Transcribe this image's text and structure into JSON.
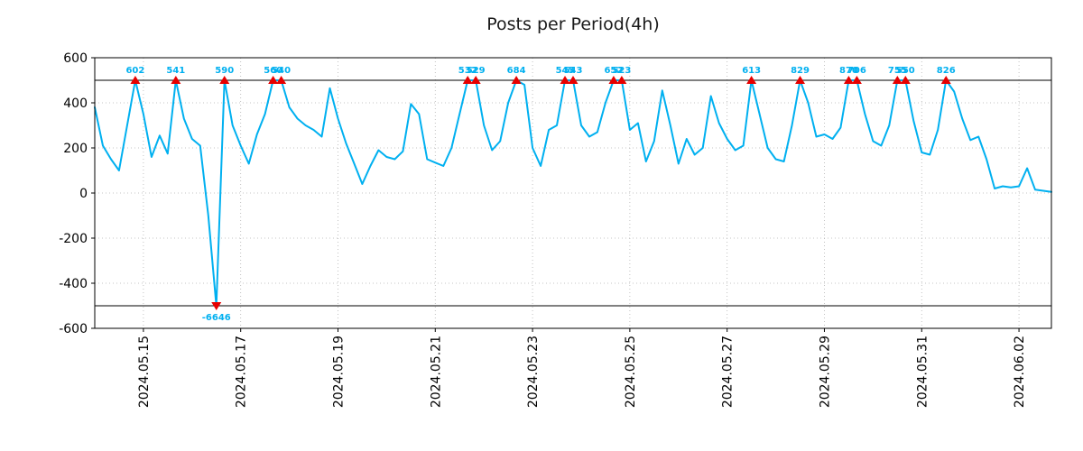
{
  "chart_data": {
    "type": "line",
    "title": "Posts per Period(4h)",
    "xlabel": "",
    "ylabel": "",
    "ylim": [
      -600,
      600
    ],
    "yticks": [
      600,
      400,
      200,
      0,
      -200,
      -400,
      -600
    ],
    "xticks": [
      {
        "label": "2024.05.15",
        "day": 1
      },
      {
        "label": "2024.05.17",
        "day": 3
      },
      {
        "label": "2024.05.19",
        "day": 5
      },
      {
        "label": "2024.05.21",
        "day": 7
      },
      {
        "label": "2024.05.23",
        "day": 9
      },
      {
        "label": "2024.05.25",
        "day": 11
      },
      {
        "label": "2024.05.27",
        "day": 13
      },
      {
        "label": "2024.05.29",
        "day": 15
      },
      {
        "label": "2024.05.31",
        "day": 17
      },
      {
        "label": "2024.06.02",
        "day": 19
      }
    ],
    "grid": true,
    "clip_threshold": 500,
    "line_color": "#00b0f0",
    "marker_color": "#e60000",
    "label_color": "#00b0f0",
    "grid_color": "#b3b3b3",
    "start_day": 0,
    "step_days": 0.1666667,
    "values": [
      380,
      210,
      150,
      100,
      300,
      602,
      350,
      160,
      255,
      175,
      541,
      330,
      240,
      210,
      -100,
      -6646,
      590,
      300,
      210,
      130,
      260,
      350,
      560,
      540,
      380,
      330,
      300,
      280,
      250,
      465,
      330,
      220,
      130,
      40,
      120,
      190,
      160,
      150,
      185,
      395,
      350,
      150,
      135,
      120,
      200,
      350,
      532,
      529,
      300,
      190,
      230,
      400,
      684,
      480,
      200,
      120,
      280,
      300,
      545,
      543,
      300,
      250,
      270,
      400,
      652,
      523,
      280,
      310,
      140,
      230,
      455,
      300,
      130,
      240,
      170,
      200,
      430,
      310,
      240,
      190,
      210,
      613,
      350,
      200,
      150,
      140,
      300,
      829,
      400,
      250,
      260,
      240,
      290,
      870,
      706,
      350,
      230,
      210,
      300,
      755,
      550,
      320,
      180,
      170,
      280,
      826,
      450,
      330,
      235,
      250,
      150,
      20,
      30,
      25,
      30,
      110,
      15,
      10,
      5
    ]
  }
}
